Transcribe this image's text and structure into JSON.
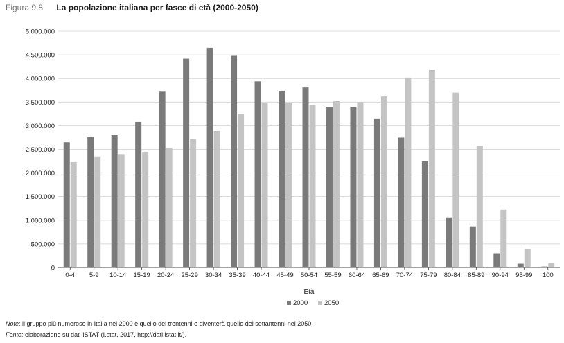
{
  "figure": {
    "label": "Figura 9.8",
    "title": "La popolazione italiana per fasce di età (2000-2050)"
  },
  "notes": {
    "note_prefix": "Note",
    "note_text": ": il gruppo più numeroso in Italia nel 2000 è quello dei trentenni e diventerà quello dei settantenni nel 2050.",
    "source_prefix": "Fonte",
    "source_text": ": elaborazione su dati ISTAT (I.stat, 2017, http://dati.istat.it/)."
  },
  "colors": {
    "series_2000": "#7a7a7a",
    "series_2050": "#c4c4c4"
  },
  "chart_data": {
    "type": "bar",
    "title": "La popolazione italiana per fasce di età (2000-2050)",
    "xlabel": "Età",
    "ylabel": "",
    "ylim": [
      0,
      5000000
    ],
    "yticks": [
      0,
      500000,
      1000000,
      1500000,
      2000000,
      2500000,
      3000000,
      3500000,
      4000000,
      4500000,
      5000000
    ],
    "ytick_labels": [
      "0",
      "500.000",
      "1.000.000",
      "1.500.000",
      "2.000.000",
      "2.500.000",
      "3.000.000",
      "3.500.000",
      "4.000.000",
      "4.500.000",
      "5.000.000"
    ],
    "categories": [
      "0-4",
      "5-9",
      "10-14",
      "15-19",
      "20-24",
      "25-29",
      "30-34",
      "35-39",
      "40-44",
      "45-49",
      "50-54",
      "55-59",
      "60-64",
      "65-69",
      "70-74",
      "75-79",
      "80-84",
      "85-89",
      "90-94",
      "95-99",
      "100"
    ],
    "series": [
      {
        "name": "2000",
        "values": [
          2650000,
          2760000,
          2800000,
          3080000,
          3720000,
          4420000,
          4650000,
          4480000,
          3940000,
          3740000,
          3810000,
          3400000,
          3400000,
          3140000,
          2750000,
          2250000,
          1060000,
          870000,
          300000,
          80000,
          20000
        ]
      },
      {
        "name": "2050",
        "values": [
          2230000,
          2350000,
          2400000,
          2450000,
          2530000,
          2720000,
          2890000,
          3250000,
          3480000,
          3480000,
          3440000,
          3520000,
          3500000,
          3620000,
          4020000,
          4180000,
          3700000,
          2580000,
          1220000,
          390000,
          90000
        ]
      }
    ],
    "grid": true,
    "legend_position": "bottom"
  }
}
